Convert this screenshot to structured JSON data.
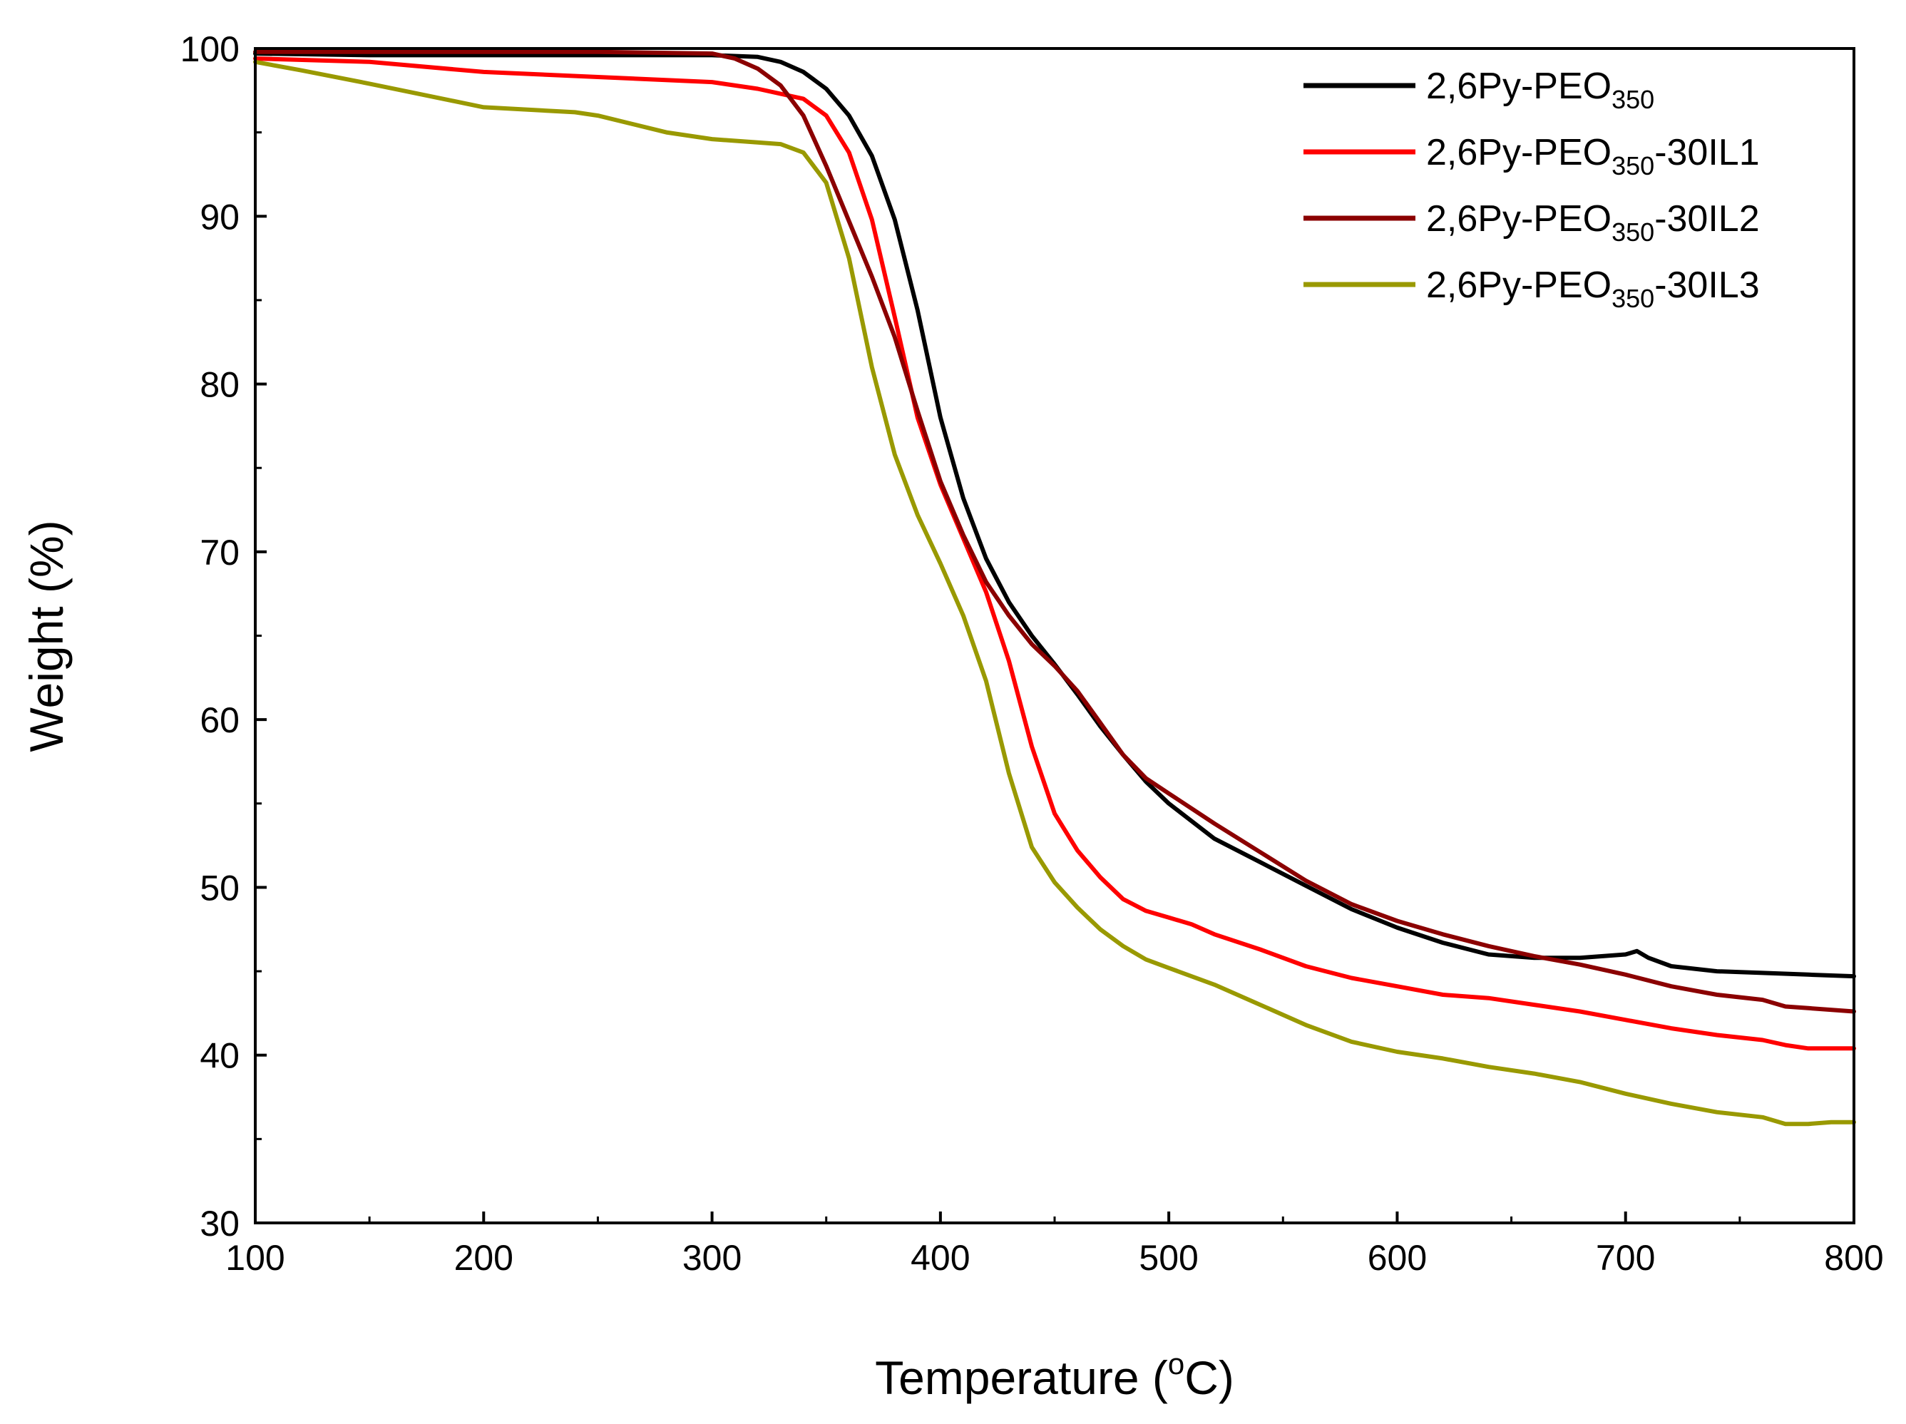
{
  "chart_data": {
    "type": "line",
    "xlabel_text": "Temperature (",
    "xlabel_sup": "o",
    "xlabel_unit": "C)",
    "ylabel": "Weight (%)",
    "xlim": [
      100,
      800
    ],
    "ylim": [
      30,
      100
    ],
    "xticks": [
      100,
      200,
      300,
      400,
      500,
      600,
      700,
      800
    ],
    "yticks": [
      30,
      40,
      50,
      60,
      70,
      80,
      90,
      100
    ],
    "grid": false,
    "legend_position": "top-right",
    "series": [
      {
        "name": "2,6Py-PEO350",
        "label_main": "2,6Py-PEO",
        "label_sub": "350",
        "label_suffix": "",
        "color": "#000000",
        "x": [
          100,
          150,
          200,
          250,
          300,
          320,
          330,
          340,
          350,
          360,
          370,
          380,
          390,
          400,
          410,
          420,
          430,
          440,
          450,
          460,
          470,
          480,
          490,
          500,
          520,
          540,
          560,
          580,
          600,
          620,
          640,
          660,
          680,
          700,
          705,
          710,
          720,
          740,
          760,
          780,
          800
        ],
        "y": [
          99.7,
          99.6,
          99.6,
          99.6,
          99.6,
          99.5,
          99.2,
          98.6,
          97.6,
          96.0,
          93.6,
          89.8,
          84.4,
          78.0,
          73.2,
          69.6,
          67.0,
          65.0,
          63.3,
          61.5,
          59.6,
          57.9,
          56.3,
          55.0,
          52.9,
          51.5,
          50.1,
          48.7,
          47.6,
          46.7,
          46.0,
          45.8,
          45.8,
          46.0,
          46.2,
          45.8,
          45.3,
          45.0,
          44.9,
          44.8,
          44.7
        ]
      },
      {
        "name": "2,6Py-PEO350-30IL1",
        "label_main": "2,6Py-PEO",
        "label_sub": "350",
        "label_suffix": "-30IL1",
        "color": "#ff0000",
        "x": [
          100,
          150,
          200,
          250,
          300,
          320,
          340,
          350,
          360,
          370,
          380,
          390,
          400,
          410,
          420,
          430,
          440,
          450,
          460,
          470,
          480,
          490,
          500,
          510,
          520,
          540,
          560,
          580,
          600,
          620,
          640,
          660,
          680,
          700,
          720,
          740,
          760,
          770,
          780,
          800
        ],
        "y": [
          99.4,
          99.2,
          98.6,
          98.3,
          98.0,
          97.6,
          97.0,
          96.0,
          93.8,
          89.8,
          84.0,
          78.0,
          74.0,
          70.8,
          67.6,
          63.5,
          58.4,
          54.4,
          52.2,
          50.6,
          49.3,
          48.6,
          48.2,
          47.8,
          47.2,
          46.3,
          45.3,
          44.6,
          44.1,
          43.6,
          43.4,
          43.0,
          42.6,
          42.1,
          41.6,
          41.2,
          40.9,
          40.6,
          40.4,
          40.4
        ]
      },
      {
        "name": "2,6Py-PEO350-30IL2",
        "label_main": "2,6Py-PEO",
        "label_sub": "350",
        "label_suffix": "-30IL2",
        "color": "#8b0000",
        "x": [
          100,
          150,
          200,
          250,
          300,
          310,
          320,
          330,
          340,
          350,
          360,
          370,
          380,
          390,
          400,
          410,
          420,
          430,
          440,
          450,
          460,
          470,
          480,
          490,
          500,
          520,
          540,
          560,
          580,
          600,
          620,
          640,
          660,
          680,
          700,
          720,
          740,
          760,
          770,
          780,
          800
        ],
        "y": [
          99.8,
          99.8,
          99.8,
          99.8,
          99.7,
          99.4,
          98.8,
          97.8,
          96.0,
          93.0,
          89.7,
          86.4,
          82.8,
          78.4,
          74.2,
          71.0,
          68.2,
          66.2,
          64.5,
          63.2,
          61.7,
          59.8,
          57.9,
          56.5,
          55.6,
          53.8,
          52.1,
          50.4,
          49.0,
          48.0,
          47.2,
          46.5,
          45.9,
          45.4,
          44.8,
          44.1,
          43.6,
          43.3,
          42.9,
          42.8,
          42.6
        ]
      },
      {
        "name": "2,6Py-PEO350-30IL3",
        "label_main": "2,6Py-PEO",
        "label_sub": "350",
        "label_suffix": "-30IL3",
        "color": "#999900",
        "x": [
          100,
          120,
          150,
          200,
          240,
          250,
          280,
          300,
          320,
          330,
          340,
          350,
          360,
          370,
          380,
          390,
          400,
          410,
          420,
          430,
          440,
          450,
          460,
          470,
          480,
          490,
          500,
          520,
          540,
          560,
          580,
          600,
          620,
          640,
          660,
          680,
          700,
          720,
          740,
          760,
          770,
          780,
          790,
          800
        ],
        "y": [
          99.2,
          98.7,
          97.9,
          96.5,
          96.2,
          96.0,
          95.0,
          94.6,
          94.4,
          94.3,
          93.8,
          92.0,
          87.5,
          81.0,
          75.8,
          72.2,
          69.3,
          66.2,
          62.3,
          56.8,
          52.4,
          50.3,
          48.8,
          47.5,
          46.5,
          45.7,
          45.2,
          44.2,
          43.0,
          41.8,
          40.8,
          40.2,
          39.8,
          39.3,
          38.9,
          38.4,
          37.7,
          37.1,
          36.6,
          36.3,
          35.9,
          35.9,
          36.0,
          36.0
        ]
      }
    ]
  }
}
